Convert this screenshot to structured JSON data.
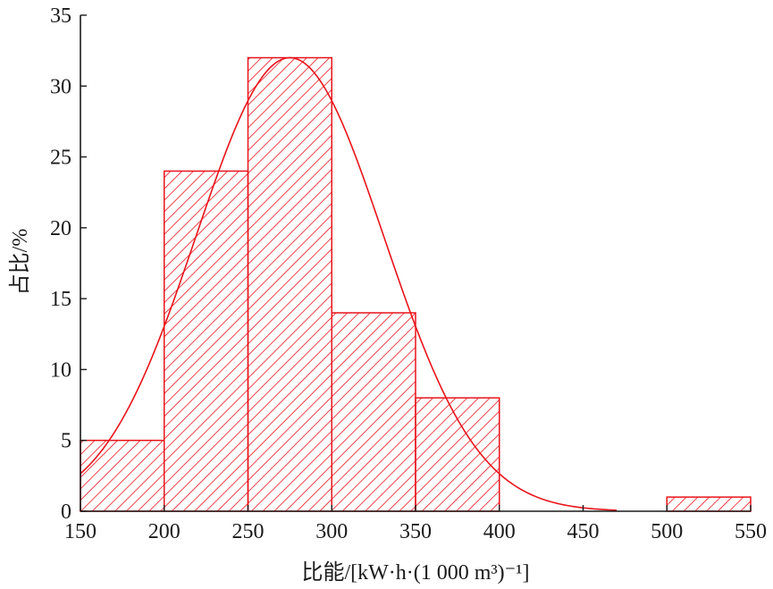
{
  "chart_data": {
    "type": "bar",
    "subtype": "histogram-with-fitted-curve",
    "title": "",
    "xlabel": "比能/[kW·h·(1 000 m³)⁻¹]",
    "ylabel": "占比/%",
    "xlim": [
      150,
      550
    ],
    "ylim": [
      0,
      35
    ],
    "x_ticks": [
      150,
      200,
      250,
      300,
      350,
      400,
      450,
      500,
      550
    ],
    "y_ticks": [
      0,
      5,
      10,
      15,
      20,
      25,
      30,
      35
    ],
    "bins": [
      {
        "start": 150,
        "end": 200,
        "value": 5
      },
      {
        "start": 200,
        "end": 250,
        "value": 24
      },
      {
        "start": 250,
        "end": 300,
        "value": 32
      },
      {
        "start": 300,
        "end": 350,
        "value": 14
      },
      {
        "start": 350,
        "end": 400,
        "value": 8
      },
      {
        "start": 500,
        "end": 550,
        "value": 1
      }
    ],
    "fit_curve": {
      "type": "normal",
      "mean": 275,
      "sd": 56,
      "peak": 32,
      "x_range": [
        150,
        470
      ]
    },
    "bar_fill": "hatched",
    "color": "#e8141b",
    "axis_color": "#1a1a1a",
    "grid": false,
    "legend": "none"
  }
}
